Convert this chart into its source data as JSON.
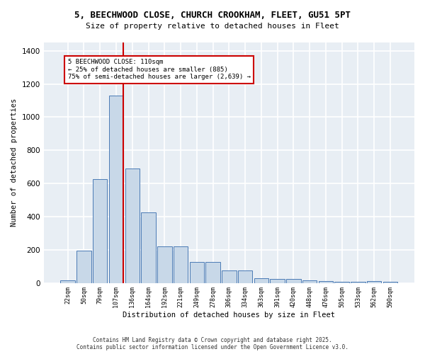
{
  "title_line1": "5, BEECHWOOD CLOSE, CHURCH CROOKHAM, FLEET, GU51 5PT",
  "title_line2": "Size of property relative to detached houses in Fleet",
  "xlabel": "Distribution of detached houses by size in Fleet",
  "ylabel": "Number of detached properties",
  "bar_labels": [
    "22sqm",
    "50sqm",
    "79sqm",
    "107sqm",
    "136sqm",
    "164sqm",
    "192sqm",
    "221sqm",
    "249sqm",
    "278sqm",
    "306sqm",
    "334sqm",
    "363sqm",
    "391sqm",
    "420sqm",
    "448sqm",
    "476sqm",
    "505sqm",
    "533sqm",
    "562sqm",
    "590sqm"
  ],
  "bar_values": [
    15,
    193,
    625,
    1130,
    690,
    425,
    220,
    220,
    125,
    125,
    75,
    75,
    30,
    25,
    22,
    15,
    10,
    5,
    5,
    10,
    5
  ],
  "bar_color": "#c8d8e8",
  "bar_edge_color": "#4a7ab5",
  "property_line_color": "#cc0000",
  "annotation_text": "5 BEECHWOOD CLOSE: 110sqm\n← 25% of detached houses are smaller (885)\n75% of semi-detached houses are larger (2,639) →",
  "annotation_box_color": "white",
  "annotation_box_edge_color": "#cc0000",
  "ylim": [
    0,
    1450
  ],
  "yticks": [
    0,
    200,
    400,
    600,
    800,
    1000,
    1200,
    1400
  ],
  "bg_color": "#e8eef4",
  "grid_color": "#ffffff",
  "fig_bg_color": "#ffffff",
  "footer_line1": "Contains HM Land Registry data © Crown copyright and database right 2025.",
  "footer_line2": "Contains public sector information licensed under the Open Government Licence v3.0."
}
